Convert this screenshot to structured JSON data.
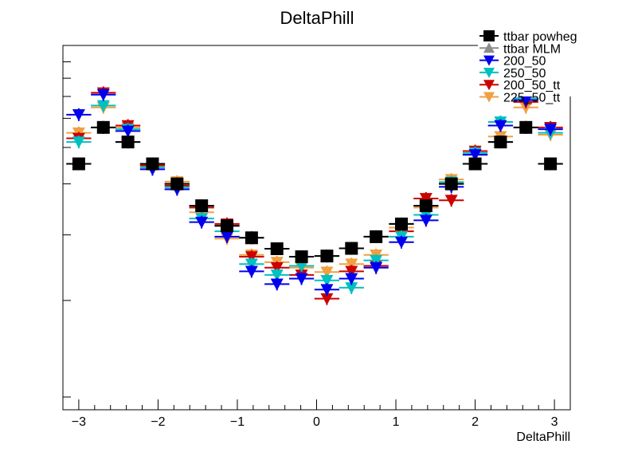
{
  "chart_data": {
    "type": "scatter",
    "title": "DeltaPhill",
    "xlabel": "DeltaPhill",
    "ylabel": "",
    "xlim": [
      -3.2,
      3.2
    ],
    "ylim": [
      0,
      1
    ],
    "x_ticks": [
      -3,
      -2,
      -1,
      0,
      1,
      2,
      3
    ],
    "x_tick_labels": [
      "−3",
      "−2",
      "−1",
      "0",
      "1",
      "2",
      "3"
    ],
    "bin_width": 0.314,
    "x": [
      -3.0,
      -2.69,
      -2.38,
      -2.07,
      -1.76,
      -1.45,
      -1.13,
      -0.82,
      -0.5,
      -0.19,
      0.13,
      0.44,
      0.75,
      1.07,
      1.38,
      1.7,
      2.0,
      2.32,
      2.64,
      2.95
    ],
    "legend_position": "top-right",
    "grid": false,
    "series": [
      {
        "name": "ttbar powheg",
        "color": "#000000",
        "marker": "square",
        "values": [
          0.675,
          0.775,
          0.735,
          0.675,
          0.62,
          0.56,
          0.505,
          0.472,
          0.442,
          0.42,
          0.422,
          0.443,
          0.475,
          0.51,
          0.56,
          0.62,
          0.675,
          0.735,
          0.775,
          0.675
        ]
      },
      {
        "name": "ttbar MLM",
        "color": "#8c8c8c",
        "marker": "triangle-up",
        "values": [
          0.675,
          0.775,
          0.735,
          0.675,
          0.62,
          0.56,
          0.505,
          0.472,
          0.442,
          0.42,
          0.422,
          0.443,
          0.475,
          0.51,
          0.56,
          0.62,
          0.675,
          0.735,
          0.775,
          0.675
        ]
      },
      {
        "name": "200_50",
        "color": "#0000ee",
        "marker": "triangle-down",
        "values": [
          0.81,
          0.865,
          0.765,
          0.66,
          0.605,
          0.515,
          0.475,
          0.38,
          0.345,
          0.36,
          0.33,
          0.36,
          0.39,
          0.46,
          0.52,
          0.612,
          0.7,
          0.78,
          0.85,
          0.77
        ]
      },
      {
        "name": "250_50",
        "color": "#00c0c0",
        "marker": "triangle-down",
        "values": [
          0.735,
          0.835,
          0.77,
          0.665,
          0.61,
          0.525,
          0.49,
          0.4,
          0.37,
          0.395,
          0.355,
          0.335,
          0.41,
          0.475,
          0.535,
          0.625,
          0.705,
          0.79,
          0.855,
          0.76
        ]
      },
      {
        "name": "200_50_tt",
        "color": "#cc0000",
        "marker": "triangle-down",
        "values": [
          0.745,
          0.87,
          0.78,
          0.67,
          0.615,
          0.555,
          0.51,
          0.42,
          0.39,
          0.37,
          0.305,
          0.38,
          0.395,
          0.49,
          0.58,
          0.575,
          0.71,
          0.78,
          0.845,
          0.775
        ]
      },
      {
        "name": "225_50_tt",
        "color": "#f0a040",
        "marker": "triangle-down",
        "values": [
          0.76,
          0.83,
          0.775,
          0.672,
          0.626,
          0.542,
          0.47,
          0.425,
          0.405,
          0.39,
          0.378,
          0.4,
          0.425,
          0.5,
          0.555,
          0.632,
          0.7,
          0.75,
          0.83,
          0.755
        ]
      }
    ]
  }
}
